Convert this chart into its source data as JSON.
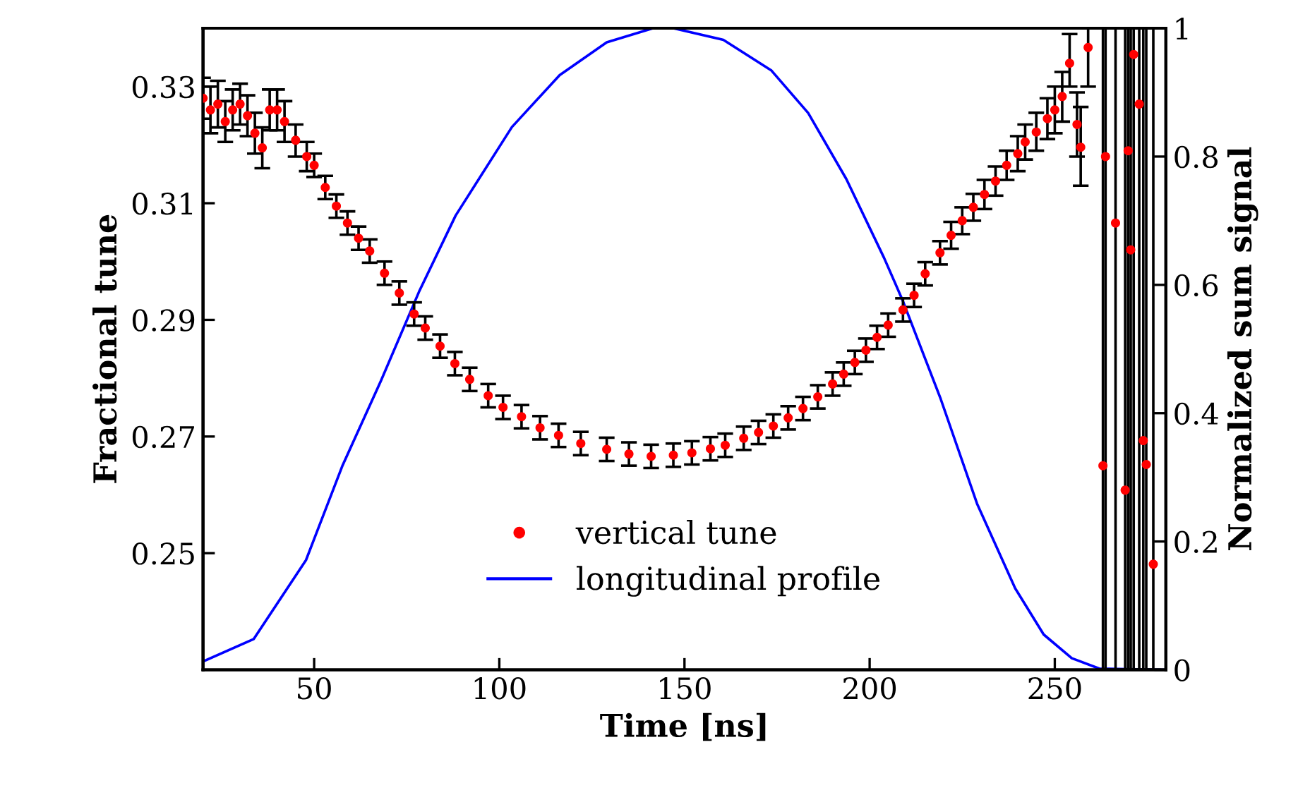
{
  "chart_data": {
    "type": "scatter",
    "xlabel": "Time [ns]",
    "ylabel": "Fractional tune",
    "y2label": "Normalized sum signal",
    "xlim": [
      20,
      280
    ],
    "xticks": [
      50,
      100,
      150,
      200,
      250
    ],
    "ylim": [
      0.23,
      0.34
    ],
    "yticks": [
      0.25,
      0.27,
      0.29,
      0.31,
      0.33
    ],
    "y2lim": [
      0,
      1
    ],
    "y2ticks": [
      0,
      0.2,
      0.4,
      0.6,
      0.8,
      1
    ],
    "legend": "bottom",
    "grid": false,
    "series": [
      {
        "name": "vertical tune",
        "color": "#ff0000",
        "marker": "circle",
        "x": [
          20,
          22,
          24,
          26,
          28,
          30,
          32,
          34,
          36,
          38,
          40,
          42,
          45,
          48,
          50,
          53,
          56,
          59,
          62,
          65,
          69,
          73,
          77,
          80,
          84,
          88,
          92,
          97,
          101,
          106,
          111,
          116,
          122,
          129,
          135,
          141,
          147,
          152,
          157,
          161,
          166,
          170,
          174,
          178,
          182,
          186,
          190,
          193,
          196,
          199,
          202,
          205,
          209,
          212,
          215,
          219,
          222,
          225,
          228,
          231,
          234,
          237,
          240,
          242,
          245,
          248,
          250,
          252,
          254,
          256,
          257,
          259,
          263,
          263.7,
          266.4,
          269,
          269.8,
          270.5,
          271.3,
          272.8,
          273.9,
          274.7,
          276.6
        ],
        "values": [
          0.328,
          0.326,
          0.327,
          0.324,
          0.326,
          0.327,
          0.325,
          0.322,
          0.3195,
          0.326,
          0.326,
          0.324,
          0.3208,
          0.318,
          0.3165,
          0.3127,
          0.3095,
          0.3066,
          0.304,
          0.3018,
          0.298,
          0.2946,
          0.291,
          0.2886,
          0.2855,
          0.2825,
          0.2798,
          0.277,
          0.275,
          0.2734,
          0.2715,
          0.2702,
          0.2688,
          0.2678,
          0.267,
          0.2666,
          0.2668,
          0.2672,
          0.2679,
          0.2685,
          0.2697,
          0.2707,
          0.2718,
          0.2732,
          0.2748,
          0.2768,
          0.279,
          0.2807,
          0.2827,
          0.2848,
          0.287,
          0.2891,
          0.2917,
          0.2942,
          0.2979,
          0.3015,
          0.3045,
          0.307,
          0.3093,
          0.3115,
          0.3138,
          0.3165,
          0.3185,
          0.3205,
          0.3222,
          0.3245,
          0.326,
          0.3283,
          0.334,
          0.3235,
          0.3196,
          0.3367,
          0.265,
          0.318,
          0.3066,
          0.2608,
          0.319,
          0.302,
          0.3355,
          0.327,
          0.2693,
          0.2652,
          0.2481
        ],
        "errors": [
          [
            0.3245,
            0.3315
          ],
          [
            0.322,
            0.33
          ],
          [
            0.323,
            0.331
          ],
          [
            0.3205,
            0.3275
          ],
          [
            0.3225,
            0.3295
          ],
          [
            0.3235,
            0.3305
          ],
          [
            0.3215,
            0.3285
          ],
          [
            0.3185,
            0.3255
          ],
          [
            0.316,
            0.323
          ],
          [
            0.3225,
            0.3295
          ],
          [
            0.3225,
            0.3295
          ],
          [
            0.3205,
            0.3275
          ],
          [
            0.318,
            0.3235
          ],
          [
            0.3155,
            0.3205
          ],
          [
            0.3145,
            0.3185
          ],
          [
            0.3107,
            0.3147
          ],
          [
            0.3075,
            0.3115
          ],
          [
            0.3046,
            0.3086
          ],
          [
            0.302,
            0.306
          ],
          [
            0.2998,
            0.3038
          ],
          [
            0.296,
            0.3
          ],
          [
            0.2926,
            0.2966
          ],
          [
            0.289,
            0.293
          ],
          [
            0.2866,
            0.2906
          ],
          [
            0.2835,
            0.2875
          ],
          [
            0.2805,
            0.2845
          ],
          [
            0.2778,
            0.2818
          ],
          [
            0.275,
            0.279
          ],
          [
            0.273,
            0.277
          ],
          [
            0.2714,
            0.2754
          ],
          [
            0.2695,
            0.2735
          ],
          [
            0.2682,
            0.2722
          ],
          [
            0.2668,
            0.2708
          ],
          [
            0.2658,
            0.2698
          ],
          [
            0.265,
            0.269
          ],
          [
            0.2646,
            0.2686
          ],
          [
            0.2648,
            0.2688
          ],
          [
            0.2652,
            0.2692
          ],
          [
            0.2659,
            0.2699
          ],
          [
            0.2665,
            0.2705
          ],
          [
            0.2677,
            0.2717
          ],
          [
            0.2687,
            0.2727
          ],
          [
            0.2698,
            0.2738
          ],
          [
            0.2712,
            0.2752
          ],
          [
            0.2728,
            0.2768
          ],
          [
            0.2748,
            0.2788
          ],
          [
            0.277,
            0.281
          ],
          [
            0.2787,
            0.2827
          ],
          [
            0.2807,
            0.2847
          ],
          [
            0.2828,
            0.2868
          ],
          [
            0.285,
            0.289
          ],
          [
            0.2871,
            0.2911
          ],
          [
            0.2897,
            0.2937
          ],
          [
            0.2922,
            0.2962
          ],
          [
            0.2959,
            0.2999
          ],
          [
            0.2995,
            0.3035
          ],
          [
            0.3022,
            0.3068
          ],
          [
            0.3047,
            0.3093
          ],
          [
            0.307,
            0.3116
          ],
          [
            0.309,
            0.314
          ],
          [
            0.3113,
            0.3163
          ],
          [
            0.314,
            0.319
          ],
          [
            0.3155,
            0.3215
          ],
          [
            0.3175,
            0.3235
          ],
          [
            0.319,
            0.3255
          ],
          [
            0.321,
            0.328
          ],
          [
            0.322,
            0.33
          ],
          [
            0.324,
            0.3325
          ],
          [
            0.33,
            0.339
          ],
          [
            0.318,
            0.329
          ],
          [
            0.313,
            0.3265
          ],
          [
            0.33,
            0.34
          ],
          [
            0.23,
            0.34
          ],
          [
            0.23,
            0.34
          ],
          [
            0.23,
            0.34
          ],
          [
            0.23,
            0.34
          ],
          [
            0.23,
            0.34
          ],
          [
            0.23,
            0.34
          ],
          [
            0.23,
            0.34
          ],
          [
            0.23,
            0.34
          ],
          [
            0.23,
            0.34
          ],
          [
            0.23,
            0.34
          ],
          [
            0.23,
            0.34
          ]
        ]
      },
      {
        "name": "longitudinal profile",
        "type": "line",
        "axis": "y2",
        "color": "#0000ff",
        "marker": "none",
        "line_style": "solid",
        "x": [
          20,
          33.7,
          47.8,
          57.7,
          68,
          78.3,
          88.2,
          103.4,
          116.3,
          129,
          141.5,
          147,
          160.5,
          173.5,
          183.4,
          193.7,
          203.9,
          208.9,
          219.2,
          229,
          239.3,
          247,
          254.6,
          262,
          280
        ],
        "values": [
          0.013,
          0.048,
          0.171,
          0.319,
          0.45,
          0.589,
          0.708,
          0.846,
          0.927,
          0.978,
          1.0,
          1.0,
          0.982,
          0.934,
          0.868,
          0.765,
          0.642,
          0.576,
          0.422,
          0.259,
          0.127,
          0.055,
          0.018,
          0.002,
          0
        ]
      }
    ]
  }
}
